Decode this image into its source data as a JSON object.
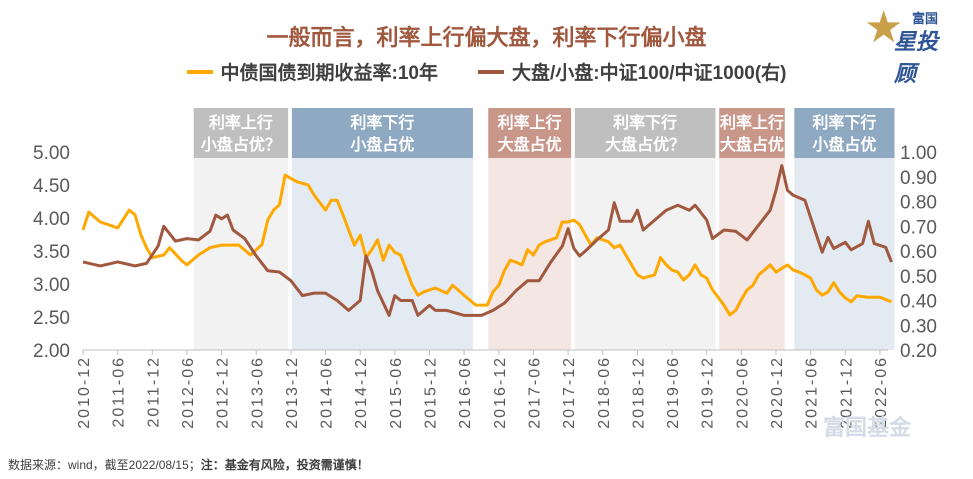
{
  "title": "一般而言，利率上行偏大盘，利率下行偏小盘",
  "logo": {
    "line1": "富国",
    "line2": "星投顾"
  },
  "watermark": "富国基金",
  "footer": {
    "source": "数据来源：wind，截至2022/08/15；",
    "note": "注：基金有风险，投资需谨慎！"
  },
  "colors": {
    "yield": "#FFA800",
    "ratio": "#A0583F",
    "gray": "#BFBFBF",
    "blue": "#8EA9C1",
    "pink": "#C9968A"
  },
  "chart_data": {
    "type": "line",
    "title": "一般而言，利率上行偏大盘，利率下行偏小盘",
    "legend_placement": "top",
    "grid": false,
    "x_ticks": [
      "2010-12",
      "2011-06",
      "2011-12",
      "2012-06",
      "2012-12",
      "2013-06",
      "2013-12",
      "2014-06",
      "2014-12",
      "2015-06",
      "2015-12",
      "2016-06",
      "2016-12",
      "2017-06",
      "2017-12",
      "2018-06",
      "2018-12",
      "2019-06",
      "2019-12",
      "2020-06",
      "2020-12",
      "2021-06",
      "2021-12",
      "2022-06"
    ],
    "y_left": {
      "range": [
        2.0,
        5.0
      ],
      "ticks": [
        "2.00",
        "2.50",
        "3.00",
        "3.50",
        "4.00",
        "4.50",
        "5.00"
      ]
    },
    "y_right": {
      "range": [
        0.2,
        1.0
      ],
      "ticks": [
        "0.20",
        "0.30",
        "0.40",
        "0.50",
        "0.60",
        "0.70",
        "0.80",
        "0.90",
        "1.00"
      ]
    },
    "series": [
      {
        "name": "中债国债到期收益率:10年",
        "axis": "left",
        "color": "#FFA800",
        "points": [
          [
            "2010-12",
            3.82
          ],
          [
            "2011-01",
            4.09
          ],
          [
            "2011-03",
            3.94
          ],
          [
            "2011-06",
            3.85
          ],
          [
            "2011-08",
            4.12
          ],
          [
            "2011-09",
            4.05
          ],
          [
            "2011-10",
            3.75
          ],
          [
            "2011-11",
            3.55
          ],
          [
            "2011-12",
            3.4
          ],
          [
            "2012-02",
            3.44
          ],
          [
            "2012-03",
            3.55
          ],
          [
            "2012-05",
            3.36
          ],
          [
            "2012-06",
            3.29
          ],
          [
            "2012-08",
            3.44
          ],
          [
            "2012-10",
            3.55
          ],
          [
            "2012-12",
            3.59
          ],
          [
            "2013-03",
            3.59
          ],
          [
            "2013-05",
            3.44
          ],
          [
            "2013-06",
            3.52
          ],
          [
            "2013-07",
            3.6
          ],
          [
            "2013-08",
            3.97
          ],
          [
            "2013-09",
            4.12
          ],
          [
            "2013-10",
            4.2
          ],
          [
            "2013-11",
            4.65
          ],
          [
            "2013-12",
            4.6
          ],
          [
            "2014-01",
            4.55
          ],
          [
            "2014-03",
            4.5
          ],
          [
            "2014-04",
            4.35
          ],
          [
            "2014-06",
            4.12
          ],
          [
            "2014-07",
            4.27
          ],
          [
            "2014-08",
            4.27
          ],
          [
            "2014-09",
            4.05
          ],
          [
            "2014-10",
            3.82
          ],
          [
            "2014-11",
            3.59
          ],
          [
            "2014-12",
            3.74
          ],
          [
            "2015-01",
            3.4
          ],
          [
            "2015-02",
            3.52
          ],
          [
            "2015-03",
            3.67
          ],
          [
            "2015-04",
            3.36
          ],
          [
            "2015-05",
            3.59
          ],
          [
            "2015-06",
            3.48
          ],
          [
            "2015-07",
            3.44
          ],
          [
            "2015-08",
            3.21
          ],
          [
            "2015-09",
            2.98
          ],
          [
            "2015-10",
            2.83
          ],
          [
            "2015-11",
            2.88
          ],
          [
            "2015-12",
            2.91
          ],
          [
            "2016-01",
            2.94
          ],
          [
            "2016-03",
            2.86
          ],
          [
            "2016-04",
            2.98
          ],
          [
            "2016-06",
            2.83
          ],
          [
            "2016-08",
            2.68
          ],
          [
            "2016-10",
            2.68
          ],
          [
            "2016-11",
            2.88
          ],
          [
            "2016-12",
            2.98
          ],
          [
            "2017-01",
            3.21
          ],
          [
            "2017-02",
            3.36
          ],
          [
            "2017-03",
            3.33
          ],
          [
            "2017-04",
            3.29
          ],
          [
            "2017-05",
            3.52
          ],
          [
            "2017-06",
            3.44
          ],
          [
            "2017-07",
            3.59
          ],
          [
            "2017-08",
            3.64
          ],
          [
            "2017-10",
            3.7
          ],
          [
            "2017-11",
            3.94
          ],
          [
            "2017-12",
            3.94
          ],
          [
            "2018-01",
            3.97
          ],
          [
            "2018-02",
            3.9
          ],
          [
            "2018-03",
            3.74
          ],
          [
            "2018-04",
            3.59
          ],
          [
            "2018-05",
            3.7
          ],
          [
            "2018-06",
            3.67
          ],
          [
            "2018-07",
            3.64
          ],
          [
            "2018-08",
            3.55
          ],
          [
            "2018-09",
            3.59
          ],
          [
            "2018-10",
            3.44
          ],
          [
            "2018-11",
            3.29
          ],
          [
            "2018-12",
            3.14
          ],
          [
            "2019-01",
            3.09
          ],
          [
            "2019-03",
            3.14
          ],
          [
            "2019-04",
            3.4
          ],
          [
            "2019-05",
            3.29
          ],
          [
            "2019-06",
            3.21
          ],
          [
            "2019-07",
            3.18
          ],
          [
            "2019-08",
            3.06
          ],
          [
            "2019-09",
            3.14
          ],
          [
            "2019-10",
            3.29
          ],
          [
            "2019-11",
            3.14
          ],
          [
            "2019-12",
            3.09
          ],
          [
            "2020-01",
            2.91
          ],
          [
            "2020-03",
            2.68
          ],
          [
            "2020-04",
            2.53
          ],
          [
            "2020-05",
            2.6
          ],
          [
            "2020-06",
            2.76
          ],
          [
            "2020-07",
            2.91
          ],
          [
            "2020-08",
            2.98
          ],
          [
            "2020-09",
            3.14
          ],
          [
            "2020-10",
            3.21
          ],
          [
            "2020-11",
            3.29
          ],
          [
            "2020-12",
            3.18
          ],
          [
            "2021-01",
            3.24
          ],
          [
            "2021-02",
            3.29
          ],
          [
            "2021-03",
            3.21
          ],
          [
            "2021-04",
            3.18
          ],
          [
            "2021-05",
            3.14
          ],
          [
            "2021-06",
            3.09
          ],
          [
            "2021-07",
            2.91
          ],
          [
            "2021-08",
            2.83
          ],
          [
            "2021-09",
            2.88
          ],
          [
            "2021-10",
            3.02
          ],
          [
            "2021-11",
            2.88
          ],
          [
            "2021-12",
            2.79
          ],
          [
            "2022-01",
            2.73
          ],
          [
            "2022-02",
            2.82
          ],
          [
            "2022-04",
            2.8
          ],
          [
            "2022-06",
            2.8
          ],
          [
            "2022-08",
            2.73
          ]
        ]
      },
      {
        "name": "大盘/小盘:中证100/中证1000(右)",
        "axis": "right",
        "color": "#A0583F",
        "points": [
          [
            "2010-12",
            0.556
          ],
          [
            "2011-03",
            0.54
          ],
          [
            "2011-06",
            0.556
          ],
          [
            "2011-09",
            0.54
          ],
          [
            "2011-11",
            0.55
          ],
          [
            "2012-01",
            0.62
          ],
          [
            "2012-02",
            0.7
          ],
          [
            "2012-04",
            0.64
          ],
          [
            "2012-06",
            0.65
          ],
          [
            "2012-08",
            0.645
          ],
          [
            "2012-10",
            0.68
          ],
          [
            "2012-11",
            0.745
          ],
          [
            "2012-12",
            0.73
          ],
          [
            "2013-01",
            0.745
          ],
          [
            "2013-02",
            0.685
          ],
          [
            "2013-04",
            0.65
          ],
          [
            "2013-06",
            0.58
          ],
          [
            "2013-08",
            0.52
          ],
          [
            "2013-10",
            0.515
          ],
          [
            "2013-12",
            0.48
          ],
          [
            "2014-02",
            0.42
          ],
          [
            "2014-04",
            0.43
          ],
          [
            "2014-06",
            0.43
          ],
          [
            "2014-08",
            0.4
          ],
          [
            "2014-10",
            0.36
          ],
          [
            "2014-12",
            0.4
          ],
          [
            "2015-01",
            0.58
          ],
          [
            "2015-02",
            0.52
          ],
          [
            "2015-03",
            0.44
          ],
          [
            "2015-05",
            0.34
          ],
          [
            "2015-06",
            0.42
          ],
          [
            "2015-07",
            0.4
          ],
          [
            "2015-09",
            0.4
          ],
          [
            "2015-10",
            0.34
          ],
          [
            "2015-12",
            0.38
          ],
          [
            "2016-01",
            0.36
          ],
          [
            "2016-03",
            0.36
          ],
          [
            "2016-06",
            0.34
          ],
          [
            "2016-09",
            0.34
          ],
          [
            "2016-11",
            0.36
          ],
          [
            "2017-01",
            0.39
          ],
          [
            "2017-03",
            0.44
          ],
          [
            "2017-05",
            0.48
          ],
          [
            "2017-07",
            0.48
          ],
          [
            "2017-09",
            0.555
          ],
          [
            "2017-11",
            0.62
          ],
          [
            "2017-12",
            0.69
          ],
          [
            "2018-01",
            0.61
          ],
          [
            "2018-02",
            0.58
          ],
          [
            "2018-03",
            0.6
          ],
          [
            "2018-05",
            0.645
          ],
          [
            "2018-07",
            0.685
          ],
          [
            "2018-08",
            0.795
          ],
          [
            "2018-09",
            0.72
          ],
          [
            "2018-11",
            0.72
          ],
          [
            "2018-12",
            0.765
          ],
          [
            "2019-01",
            0.685
          ],
          [
            "2019-03",
            0.725
          ],
          [
            "2019-05",
            0.765
          ],
          [
            "2019-07",
            0.785
          ],
          [
            "2019-09",
            0.765
          ],
          [
            "2019-10",
            0.785
          ],
          [
            "2019-12",
            0.725
          ],
          [
            "2020-01",
            0.65
          ],
          [
            "2020-03",
            0.685
          ],
          [
            "2020-05",
            0.68
          ],
          [
            "2020-07",
            0.645
          ],
          [
            "2020-09",
            0.705
          ],
          [
            "2020-11",
            0.765
          ],
          [
            "2020-12",
            0.845
          ],
          [
            "2021-01",
            0.945
          ],
          [
            "2021-02",
            0.845
          ],
          [
            "2021-03",
            0.825
          ],
          [
            "2021-05",
            0.805
          ],
          [
            "2021-07",
            0.665
          ],
          [
            "2021-08",
            0.595
          ],
          [
            "2021-09",
            0.655
          ],
          [
            "2021-10",
            0.61
          ],
          [
            "2021-12",
            0.635
          ],
          [
            "2022-01",
            0.605
          ],
          [
            "2022-03",
            0.63
          ],
          [
            "2022-04",
            0.72
          ],
          [
            "2022-05",
            0.63
          ],
          [
            "2022-07",
            0.615
          ],
          [
            "2022-08",
            0.555
          ]
        ]
      }
    ],
    "regimes": [
      {
        "start": "2012-07",
        "end": "2013-11",
        "kind": "gray",
        "line1": "利率上行",
        "line2": "小盘占优？"
      },
      {
        "start": "2013-12",
        "end": "2016-07",
        "kind": "blue",
        "line1": "利率下行",
        "line2": "小盘占优"
      },
      {
        "start": "2016-10",
        "end": "2017-12",
        "kind": "pink",
        "line1": "利率上行",
        "line2": "大盘占优"
      },
      {
        "start": "2018-01",
        "end": "2020-01",
        "kind": "gray",
        "line1": "利率下行",
        "line2": "大盘占优？"
      },
      {
        "start": "2020-02",
        "end": "2021-01",
        "kind": "pink",
        "line1": "利率上行",
        "line2": "大盘占优"
      },
      {
        "start": "2021-03",
        "end": "2022-08",
        "kind": "blue",
        "line1": "利率下行",
        "line2": "小盘占优"
      }
    ]
  }
}
